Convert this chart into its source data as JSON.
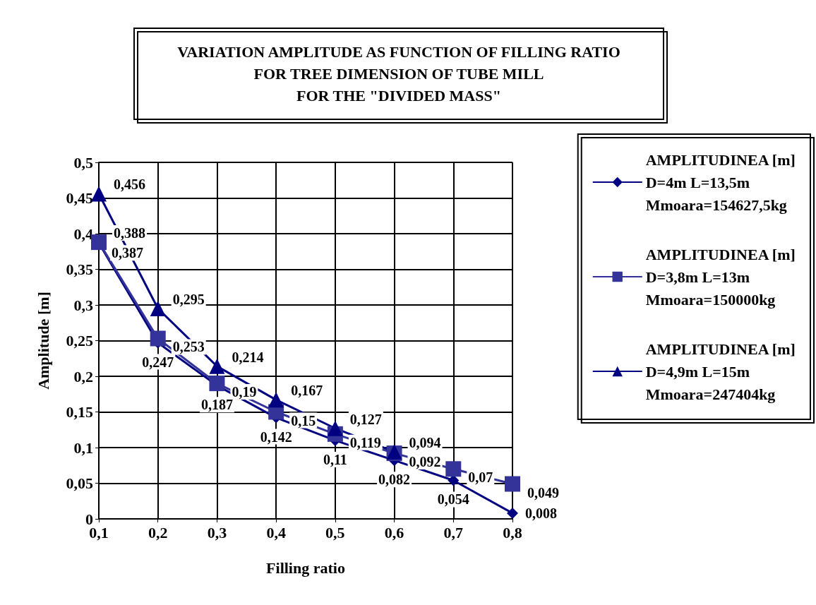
{
  "chart_data": {
    "type": "line",
    "title": "VARIATION AMPLITUDE AS FUNCTION OF FILLING RATIO\nFOR TREE DIMENSION OF TUBE MILL\nFOR THE \"DIVIDED MASS\"",
    "xlabel": "Filling ratio",
    "ylabel": "Amplitude [m]",
    "x": [
      0.1,
      0.2,
      0.3,
      0.4,
      0.5,
      0.6,
      0.7,
      0.8
    ],
    "xlim": [
      0.1,
      0.8
    ],
    "xticks": [
      {
        "value": 0.1,
        "label": "0,1"
      },
      {
        "value": 0.2,
        "label": "0,2"
      },
      {
        "value": 0.3,
        "label": "0,3"
      },
      {
        "value": 0.4,
        "label": "0,4"
      },
      {
        "value": 0.5,
        "label": "0,5"
      },
      {
        "value": 0.6,
        "label": "0,6"
      },
      {
        "value": 0.7,
        "label": "0,7"
      },
      {
        "value": 0.8,
        "label": "0,8"
      }
    ],
    "ylim": [
      0,
      0.5
    ],
    "yticks": [
      0,
      {
        "value": 0.05,
        "label": "0,05"
      },
      {
        "value": 0.1,
        "label": "0,1"
      },
      {
        "value": 0.15,
        "label": "0,15"
      },
      {
        "value": 0.2,
        "label": "0,2"
      },
      {
        "value": 0.25,
        "label": "0,25"
      },
      {
        "value": 0.3,
        "label": "0,3"
      },
      {
        "value": 0.35,
        "label": "0,35"
      },
      {
        "value": 0.4,
        "label": "0,4"
      },
      {
        "value": 0.45,
        "label": "0,45"
      },
      {
        "value": 0.5,
        "label": "0,5"
      }
    ],
    "grid": true,
    "legend": "right",
    "series": [
      {
        "name": "AMPLITUDINEA [m]\nD=4m L=13,5m\nMmoara=154627,5kg",
        "color": "#000080",
        "marker": "diamond",
        "values": [
          0.387,
          0.247,
          0.187,
          0.142,
          0.11,
          0.082,
          0.054,
          0.008
        ],
        "value_labels": [
          "0,387",
          "0,247",
          "0,187",
          "0,142",
          "0,11",
          "0,082",
          "0,054",
          "0,008"
        ]
      },
      {
        "name": "AMPLITUDINEA [m]\nD=3,8m L=13m\nMmoara=150000kg",
        "color": "#333399",
        "marker": "square",
        "values": [
          0.388,
          0.253,
          0.19,
          0.15,
          0.119,
          0.092,
          0.07,
          0.049
        ],
        "value_labels": [
          "0,388",
          "0,253",
          "0,19",
          "0,15",
          "0,119",
          "0,092",
          "0,07",
          "0,049"
        ]
      },
      {
        "name": "AMPLITUDINEA [m]\nD=4,9m L=15m\nMmoara=247404kg",
        "color": "#000080",
        "marker": "triangle",
        "values": [
          0.456,
          0.295,
          0.214,
          0.167,
          0.127,
          0.094,
          null,
          null
        ],
        "value_labels": [
          "0,456",
          "0,295",
          "0,214",
          "0,167",
          "0,127",
          "0,094",
          null,
          null
        ]
      }
    ]
  }
}
